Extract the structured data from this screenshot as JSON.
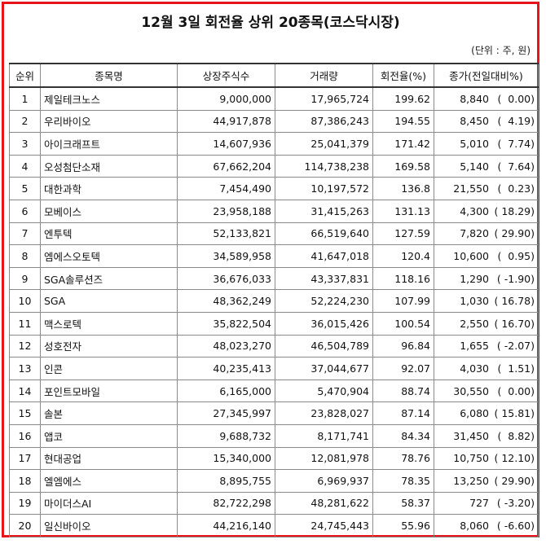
{
  "title": "12월 3일 회전율 상위 20종목(코스닥시장)",
  "unit": "(단위 : 주, 원)",
  "columns": [
    "순위",
    "종목명",
    "상장주식수",
    "거래량",
    "회전율(%)",
    "종가(전일대비%)"
  ],
  "rows": [
    {
      "rank": "1",
      "name": "제일테크노스",
      "listed": "9,000,000",
      "volume": "17,965,724",
      "turnover": "199.62",
      "price": "8,840",
      "change": "(  0.00)"
    },
    {
      "rank": "2",
      "name": "우리바이오",
      "listed": "44,917,878",
      "volume": "87,386,243",
      "turnover": "194.55",
      "price": "8,450",
      "change": "(  4.19)"
    },
    {
      "rank": "3",
      "name": "아이크래프트",
      "listed": "14,607,936",
      "volume": "25,041,379",
      "turnover": "171.42",
      "price": "5,010",
      "change": "(  7.74)"
    },
    {
      "rank": "4",
      "name": "오성첨단소재",
      "listed": "67,662,204",
      "volume": "114,738,238",
      "turnover": "169.58",
      "price": "5,140",
      "change": "(  7.64)"
    },
    {
      "rank": "5",
      "name": "대한과학",
      "listed": "7,454,490",
      "volume": "10,197,572",
      "turnover": "136.8",
      "price": "21,550",
      "change": "(  0.23)"
    },
    {
      "rank": "6",
      "name": "모베이스",
      "listed": "23,958,188",
      "volume": "31,415,263",
      "turnover": "131.13",
      "price": "4,300",
      "change": "( 18.29)"
    },
    {
      "rank": "7",
      "name": "엔투텍",
      "listed": "52,133,821",
      "volume": "66,519,640",
      "turnover": "127.59",
      "price": "7,820",
      "change": "( 29.90)"
    },
    {
      "rank": "8",
      "name": "엠에스오토텍",
      "listed": "34,589,958",
      "volume": "41,647,018",
      "turnover": "120.4",
      "price": "10,600",
      "change": "(  0.95)"
    },
    {
      "rank": "9",
      "name": "SGA솔루션즈",
      "listed": "36,676,033",
      "volume": "43,337,831",
      "turnover": "118.16",
      "price": "1,290",
      "change": "( -1.90)"
    },
    {
      "rank": "10",
      "name": "SGA",
      "listed": "48,362,249",
      "volume": "52,224,230",
      "turnover": "107.99",
      "price": "1,030",
      "change": "( 16.78)"
    },
    {
      "rank": "11",
      "name": "맥스로텍",
      "listed": "35,822,504",
      "volume": "36,015,426",
      "turnover": "100.54",
      "price": "2,550",
      "change": "( 16.70)"
    },
    {
      "rank": "12",
      "name": "성호전자",
      "listed": "48,023,270",
      "volume": "46,504,789",
      "turnover": "96.84",
      "price": "1,655",
      "change": "( -2.07)"
    },
    {
      "rank": "13",
      "name": "인콘",
      "listed": "40,235,413",
      "volume": "37,044,677",
      "turnover": "92.07",
      "price": "4,030",
      "change": "(  1.51)"
    },
    {
      "rank": "14",
      "name": "포인트모바일",
      "listed": "6,165,000",
      "volume": "5,470,904",
      "turnover": "88.74",
      "price": "30,550",
      "change": "(  0.00)"
    },
    {
      "rank": "15",
      "name": "솔본",
      "listed": "27,345,997",
      "volume": "23,828,027",
      "turnover": "87.14",
      "price": "6,080",
      "change": "( 15.81)"
    },
    {
      "rank": "16",
      "name": "앱코",
      "listed": "9,688,732",
      "volume": "8,171,741",
      "turnover": "84.34",
      "price": "31,450",
      "change": "(  8.82)"
    },
    {
      "rank": "17",
      "name": "현대공업",
      "listed": "15,340,000",
      "volume": "12,081,978",
      "turnover": "78.76",
      "price": "10,750",
      "change": "( 12.10)"
    },
    {
      "rank": "18",
      "name": "엘엠에스",
      "listed": "8,895,755",
      "volume": "6,969,937",
      "turnover": "78.35",
      "price": "13,250",
      "change": "( 29.90)"
    },
    {
      "rank": "19",
      "name": "마이더스AI",
      "listed": "82,722,298",
      "volume": "48,281,622",
      "turnover": "58.37",
      "price": "727",
      "change": "( -3.20)"
    },
    {
      "rank": "20",
      "name": "일신바이오",
      "listed": "44,216,140",
      "volume": "24,745,443",
      "turnover": "55.96",
      "price": "8,060",
      "change": "( -6.60)"
    }
  ],
  "colors": {
    "frame": "#e8141c",
    "grid": "#8a8a8a"
  }
}
